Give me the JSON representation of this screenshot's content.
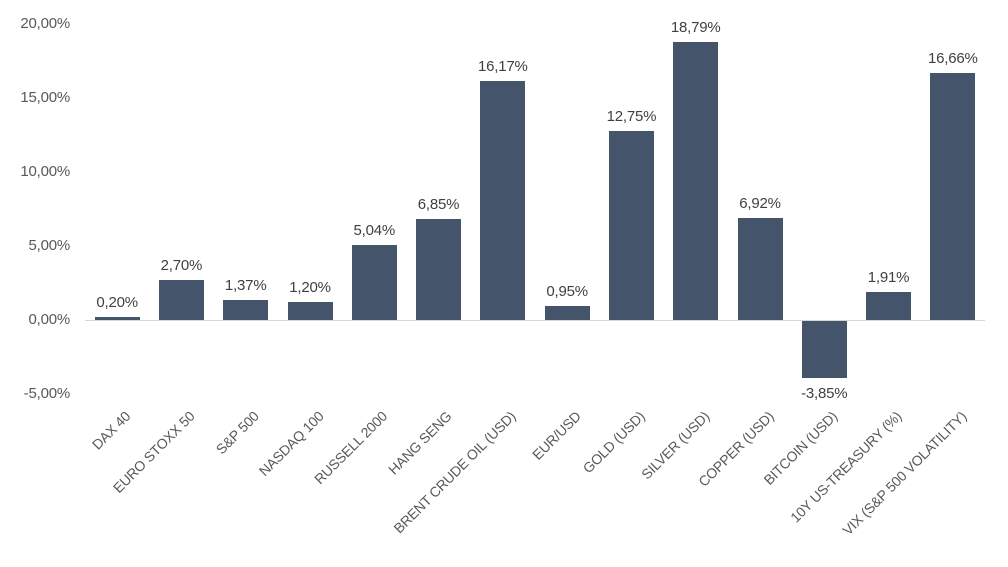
{
  "chart_data": {
    "type": "bar",
    "categories": [
      "DAX 40",
      "EURO STOXX 50",
      "S&P 500",
      "NASDAQ 100",
      "RUSSELL 2000",
      "HANG SENG",
      "BRENT CRUDE OIL (USD)",
      "EUR/USD",
      "GOLD (USD)",
      "SILVER (USD)",
      "COPPER (USD)",
      "BITCOIN (USD)",
      "10Y US-TREASURY (%)",
      "VIX (S&P 500 VOLATILITY)"
    ],
    "values": [
      0.2,
      2.7,
      1.37,
      1.2,
      5.04,
      6.85,
      16.17,
      0.95,
      12.75,
      18.79,
      6.92,
      -3.85,
      1.91,
      16.66
    ],
    "value_labels": [
      "0,20%",
      "2,70%",
      "1,37%",
      "1,20%",
      "5,04%",
      "6,85%",
      "16,17%",
      "0,95%",
      "12,75%",
      "18,79%",
      "6,92%",
      "-3,85%",
      "1,91%",
      "16,66%"
    ],
    "title": "",
    "xlabel": "",
    "ylabel": "",
    "ylim": [
      -5,
      20
    ],
    "y_ticks": [
      {
        "value": 20,
        "label": "20,00%"
      },
      {
        "value": 15,
        "label": "15,00%"
      },
      {
        "value": 10,
        "label": "10,00%"
      },
      {
        "value": 5,
        "label": "5,00%"
      },
      {
        "value": 0,
        "label": "0,00%"
      },
      {
        "value": -5,
        "label": "-5,00%"
      }
    ],
    "grid": false,
    "legend": false,
    "decimal_separator": ",",
    "colors": {
      "bar_fill": "#44546A",
      "axis_line": "#D6D6D6",
      "tick_text": "#595959",
      "data_label_text": "#404040",
      "background": "#FFFFFF"
    }
  }
}
